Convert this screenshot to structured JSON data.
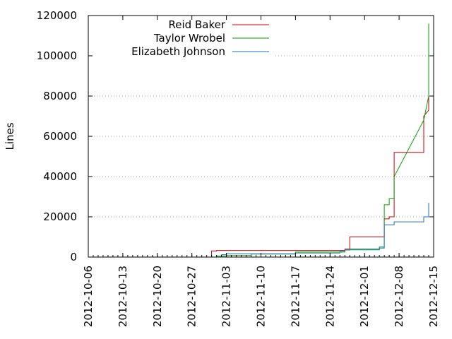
{
  "chart_data": {
    "type": "line",
    "title": "",
    "xlabel": "",
    "ylabel": "Lines",
    "xlim": [
      "2012-10-06",
      "2012-12-15"
    ],
    "ylim": [
      0,
      120000
    ],
    "grid": "y-dotted",
    "legend_position": "top-left",
    "x_ticks": [
      "2012-10-06",
      "2012-10-13",
      "2012-10-20",
      "2012-10-27",
      "2012-11-03",
      "2012-11-10",
      "2012-11-17",
      "2012-11-24",
      "2012-12-01",
      "2012-12-08",
      "2012-12-15"
    ],
    "y_ticks": [
      0,
      20000,
      40000,
      60000,
      80000,
      100000,
      120000
    ],
    "y_tick_labels": [
      "0",
      "20000",
      "40000",
      "60000",
      "80000",
      "100000",
      "120000"
    ],
    "series": [
      {
        "name": "Reid Baker",
        "color": "#cc0000",
        "points": [
          [
            "2012-10-31",
            0
          ],
          [
            "2012-10-31",
            3000
          ],
          [
            "2012-11-01",
            3000
          ],
          [
            "2012-11-01",
            3300
          ],
          [
            "2012-11-27",
            3300
          ],
          [
            "2012-11-27",
            4000
          ],
          [
            "2012-11-28",
            4000
          ],
          [
            "2012-11-28",
            10000
          ],
          [
            "2012-12-05",
            10000
          ],
          [
            "2012-12-05",
            19000
          ],
          [
            "2012-12-06",
            19000
          ],
          [
            "2012-12-06",
            20000
          ],
          [
            "2012-12-07",
            20000
          ],
          [
            "2012-12-07",
            22000
          ],
          [
            "2012-12-07",
            36000
          ],
          [
            "2012-12-07",
            52000
          ],
          [
            "2012-12-13",
            52000
          ],
          [
            "2012-12-13",
            70000
          ],
          [
            "2012-12-14",
            73000
          ],
          [
            "2012-12-14",
            82000
          ]
        ]
      },
      {
        "name": "Taylor Wrobel",
        "color": "#00a000",
        "points": [
          [
            "2012-11-01",
            0
          ],
          [
            "2012-11-01",
            500
          ],
          [
            "2012-11-03",
            500
          ],
          [
            "2012-11-03",
            800
          ],
          [
            "2012-11-08",
            800
          ],
          [
            "2012-11-08",
            1500
          ],
          [
            "2012-11-17",
            1500
          ],
          [
            "2012-11-17",
            2500
          ],
          [
            "2012-11-27",
            2500
          ],
          [
            "2012-11-27",
            3500
          ],
          [
            "2012-11-28",
            3500
          ],
          [
            "2012-11-28",
            4000
          ],
          [
            "2012-12-04",
            4000
          ],
          [
            "2012-12-04",
            5000
          ],
          [
            "2012-12-05",
            5000
          ],
          [
            "2012-12-05",
            25000
          ],
          [
            "2012-12-05",
            26000
          ],
          [
            "2012-12-06",
            26000
          ],
          [
            "2012-12-06",
            29000
          ],
          [
            "2012-12-07",
            29000
          ],
          [
            "2012-12-07",
            33000
          ],
          [
            "2012-12-07",
            40000
          ],
          [
            "2012-12-13",
            68000
          ],
          [
            "2012-12-14",
            80000
          ],
          [
            "2012-12-14",
            92000
          ],
          [
            "2012-12-14",
            116000
          ]
        ]
      },
      {
        "name": "Elizabeth Johnson",
        "color": "#1c6fbf",
        "points": [
          [
            "2012-11-02",
            0
          ],
          [
            "2012-11-02",
            1200
          ],
          [
            "2012-11-03",
            1200
          ],
          [
            "2012-11-03",
            1600
          ],
          [
            "2012-11-17",
            1600
          ],
          [
            "2012-11-17",
            2000
          ],
          [
            "2012-11-26",
            2000
          ],
          [
            "2012-11-26",
            3000
          ],
          [
            "2012-11-27",
            3000
          ],
          [
            "2012-11-27",
            3600
          ],
          [
            "2012-12-04",
            3600
          ],
          [
            "2012-12-04",
            4500
          ],
          [
            "2012-12-05",
            4500
          ],
          [
            "2012-12-05",
            15000
          ],
          [
            "2012-12-05",
            16000
          ],
          [
            "2012-12-07",
            16000
          ],
          [
            "2012-12-07",
            17500
          ],
          [
            "2012-12-13",
            17500
          ],
          [
            "2012-12-13",
            20000
          ],
          [
            "2012-12-14",
            20000
          ],
          [
            "2012-12-14",
            24000
          ],
          [
            "2012-12-14",
            27000
          ]
        ]
      }
    ]
  }
}
